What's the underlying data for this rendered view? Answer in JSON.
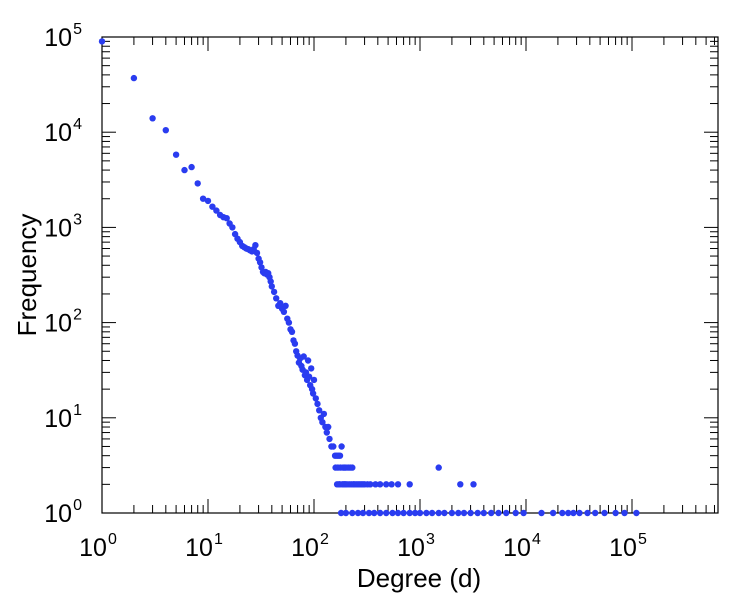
{
  "chart_data": {
    "type": "scatter",
    "title": "",
    "xlabel": "Degree (d)",
    "ylabel": "Frequency",
    "xscale": "log",
    "yscale": "log",
    "xlim": [
      1,
      1000000
    ],
    "ylim": [
      1,
      100000
    ],
    "grid": false,
    "marker_color": "#2a3cf0",
    "x_tick_labels": [
      {
        "base": "10",
        "exp": "0"
      },
      {
        "base": "10",
        "exp": "1"
      },
      {
        "base": "10",
        "exp": "2"
      },
      {
        "base": "10",
        "exp": "3"
      },
      {
        "base": "10",
        "exp": "4"
      },
      {
        "base": "10",
        "exp": "5"
      }
    ],
    "y_tick_labels": [
      {
        "base": "10",
        "exp": "0"
      },
      {
        "base": "10",
        "exp": "1"
      },
      {
        "base": "10",
        "exp": "2"
      },
      {
        "base": "10",
        "exp": "3"
      },
      {
        "base": "10",
        "exp": "4"
      },
      {
        "base": "10",
        "exp": "5"
      }
    ],
    "series": [
      {
        "points": [
          [
            1,
            90000
          ],
          [
            2,
            37000
          ],
          [
            3,
            14000
          ],
          [
            4,
            10500
          ],
          [
            5,
            5800
          ],
          [
            6,
            4000
          ],
          [
            7,
            4300
          ],
          [
            8,
            2900
          ],
          [
            9,
            2000
          ],
          [
            10,
            1900
          ],
          [
            11,
            1650
          ],
          [
            12,
            1500
          ],
          [
            13,
            1350
          ],
          [
            14,
            1280
          ],
          [
            15,
            1250
          ],
          [
            16,
            1100
          ],
          [
            17,
            1000
          ],
          [
            18,
            850
          ],
          [
            19,
            760
          ],
          [
            20,
            700
          ],
          [
            21,
            640
          ],
          [
            22,
            620
          ],
          [
            23,
            600
          ],
          [
            24,
            590
          ],
          [
            25,
            575
          ],
          [
            26,
            560
          ],
          [
            27,
            590
          ],
          [
            28,
            650
          ],
          [
            29,
            540
          ],
          [
            30,
            470
          ],
          [
            31,
            430
          ],
          [
            32,
            380
          ],
          [
            33,
            340
          ],
          [
            34,
            330
          ],
          [
            35,
            340
          ],
          [
            36,
            320
          ],
          [
            37,
            330
          ],
          [
            38,
            300
          ],
          [
            39,
            270
          ],
          [
            40,
            240
          ],
          [
            42,
            210
          ],
          [
            44,
            180
          ],
          [
            46,
            150
          ],
          [
            48,
            160
          ],
          [
            50,
            140
          ],
          [
            52,
            130
          ],
          [
            54,
            150
          ],
          [
            56,
            110
          ],
          [
            58,
            100
          ],
          [
            60,
            85
          ],
          [
            62,
            80
          ],
          [
            64,
            65
          ],
          [
            66,
            60
          ],
          [
            68,
            50
          ],
          [
            70,
            45
          ],
          [
            72,
            38
          ],
          [
            74,
            42
          ],
          [
            76,
            35
          ],
          [
            78,
            32
          ],
          [
            80,
            44
          ],
          [
            82,
            28
          ],
          [
            84,
            30
          ],
          [
            86,
            25
          ],
          [
            88,
            40
          ],
          [
            90,
            27
          ],
          [
            92,
            22
          ],
          [
            94,
            33
          ],
          [
            96,
            20
          ],
          [
            98,
            18
          ],
          [
            100,
            25
          ],
          [
            104,
            16
          ],
          [
            108,
            14
          ],
          [
            112,
            12
          ],
          [
            116,
            10
          ],
          [
            120,
            9
          ],
          [
            124,
            11
          ],
          [
            128,
            8
          ],
          [
            132,
            7
          ],
          [
            136,
            8
          ],
          [
            140,
            6
          ],
          [
            146,
            5
          ],
          [
            152,
            5
          ],
          [
            158,
            4
          ],
          [
            164,
            4
          ],
          [
            170,
            4
          ],
          [
            176,
            4
          ],
          [
            182,
            5
          ],
          [
            188,
            3
          ],
          [
            194,
            3
          ],
          [
            200,
            3
          ],
          [
            210,
            3
          ],
          [
            220,
            3
          ],
          [
            230,
            3
          ],
          [
            240,
            2
          ],
          [
            260,
            2
          ],
          [
            280,
            2
          ],
          [
            300,
            2
          ],
          [
            320,
            2
          ],
          [
            175,
            2
          ],
          [
            185,
            2
          ],
          [
            195,
            2
          ],
          [
            205,
            2
          ],
          [
            215,
            2
          ],
          [
            225,
            2
          ],
          [
            160,
            3
          ],
          [
            165,
            2
          ],
          [
            168,
            3
          ],
          [
            172,
            2
          ],
          [
            178,
            3
          ],
          [
            190,
            2
          ],
          [
            198,
            2
          ],
          [
            235,
            2
          ],
          [
            250,
            2
          ],
          [
            270,
            2
          ],
          [
            290,
            2
          ],
          [
            340,
            2
          ],
          [
            380,
            2
          ],
          [
            420,
            2
          ],
          [
            480,
            2
          ],
          [
            540,
            2
          ],
          [
            620,
            2
          ],
          [
            800,
            2
          ],
          [
            1500,
            3
          ],
          [
            2400,
            2
          ],
          [
            3200,
            2
          ],
          [
            180,
            1
          ],
          [
            200,
            1
          ],
          [
            230,
            1
          ],
          [
            260,
            1
          ],
          [
            290,
            1
          ],
          [
            330,
            1
          ],
          [
            370,
            1
          ],
          [
            420,
            1
          ],
          [
            480,
            1
          ],
          [
            550,
            1
          ],
          [
            620,
            1
          ],
          [
            700,
            1
          ],
          [
            800,
            1
          ],
          [
            900,
            1
          ],
          [
            1000,
            1
          ],
          [
            1150,
            1
          ],
          [
            1300,
            1
          ],
          [
            1500,
            1
          ],
          [
            1700,
            1
          ],
          [
            2000,
            1
          ],
          [
            2300,
            1
          ],
          [
            2600,
            1
          ],
          [
            3000,
            1
          ],
          [
            3500,
            1
          ],
          [
            4000,
            1
          ],
          [
            4700,
            1
          ],
          [
            5500,
            1
          ],
          [
            6500,
            1
          ],
          [
            8000,
            1
          ],
          [
            9500,
            1
          ],
          [
            14000,
            1
          ],
          [
            18000,
            1
          ],
          [
            22000,
            1
          ],
          [
            25000,
            1
          ],
          [
            28000,
            1
          ],
          [
            32000,
            1
          ],
          [
            38000,
            1
          ],
          [
            45000,
            1
          ],
          [
            55000,
            1
          ],
          [
            70000,
            1
          ],
          [
            85000,
            1
          ],
          [
            110000,
            1
          ]
        ]
      }
    ]
  }
}
